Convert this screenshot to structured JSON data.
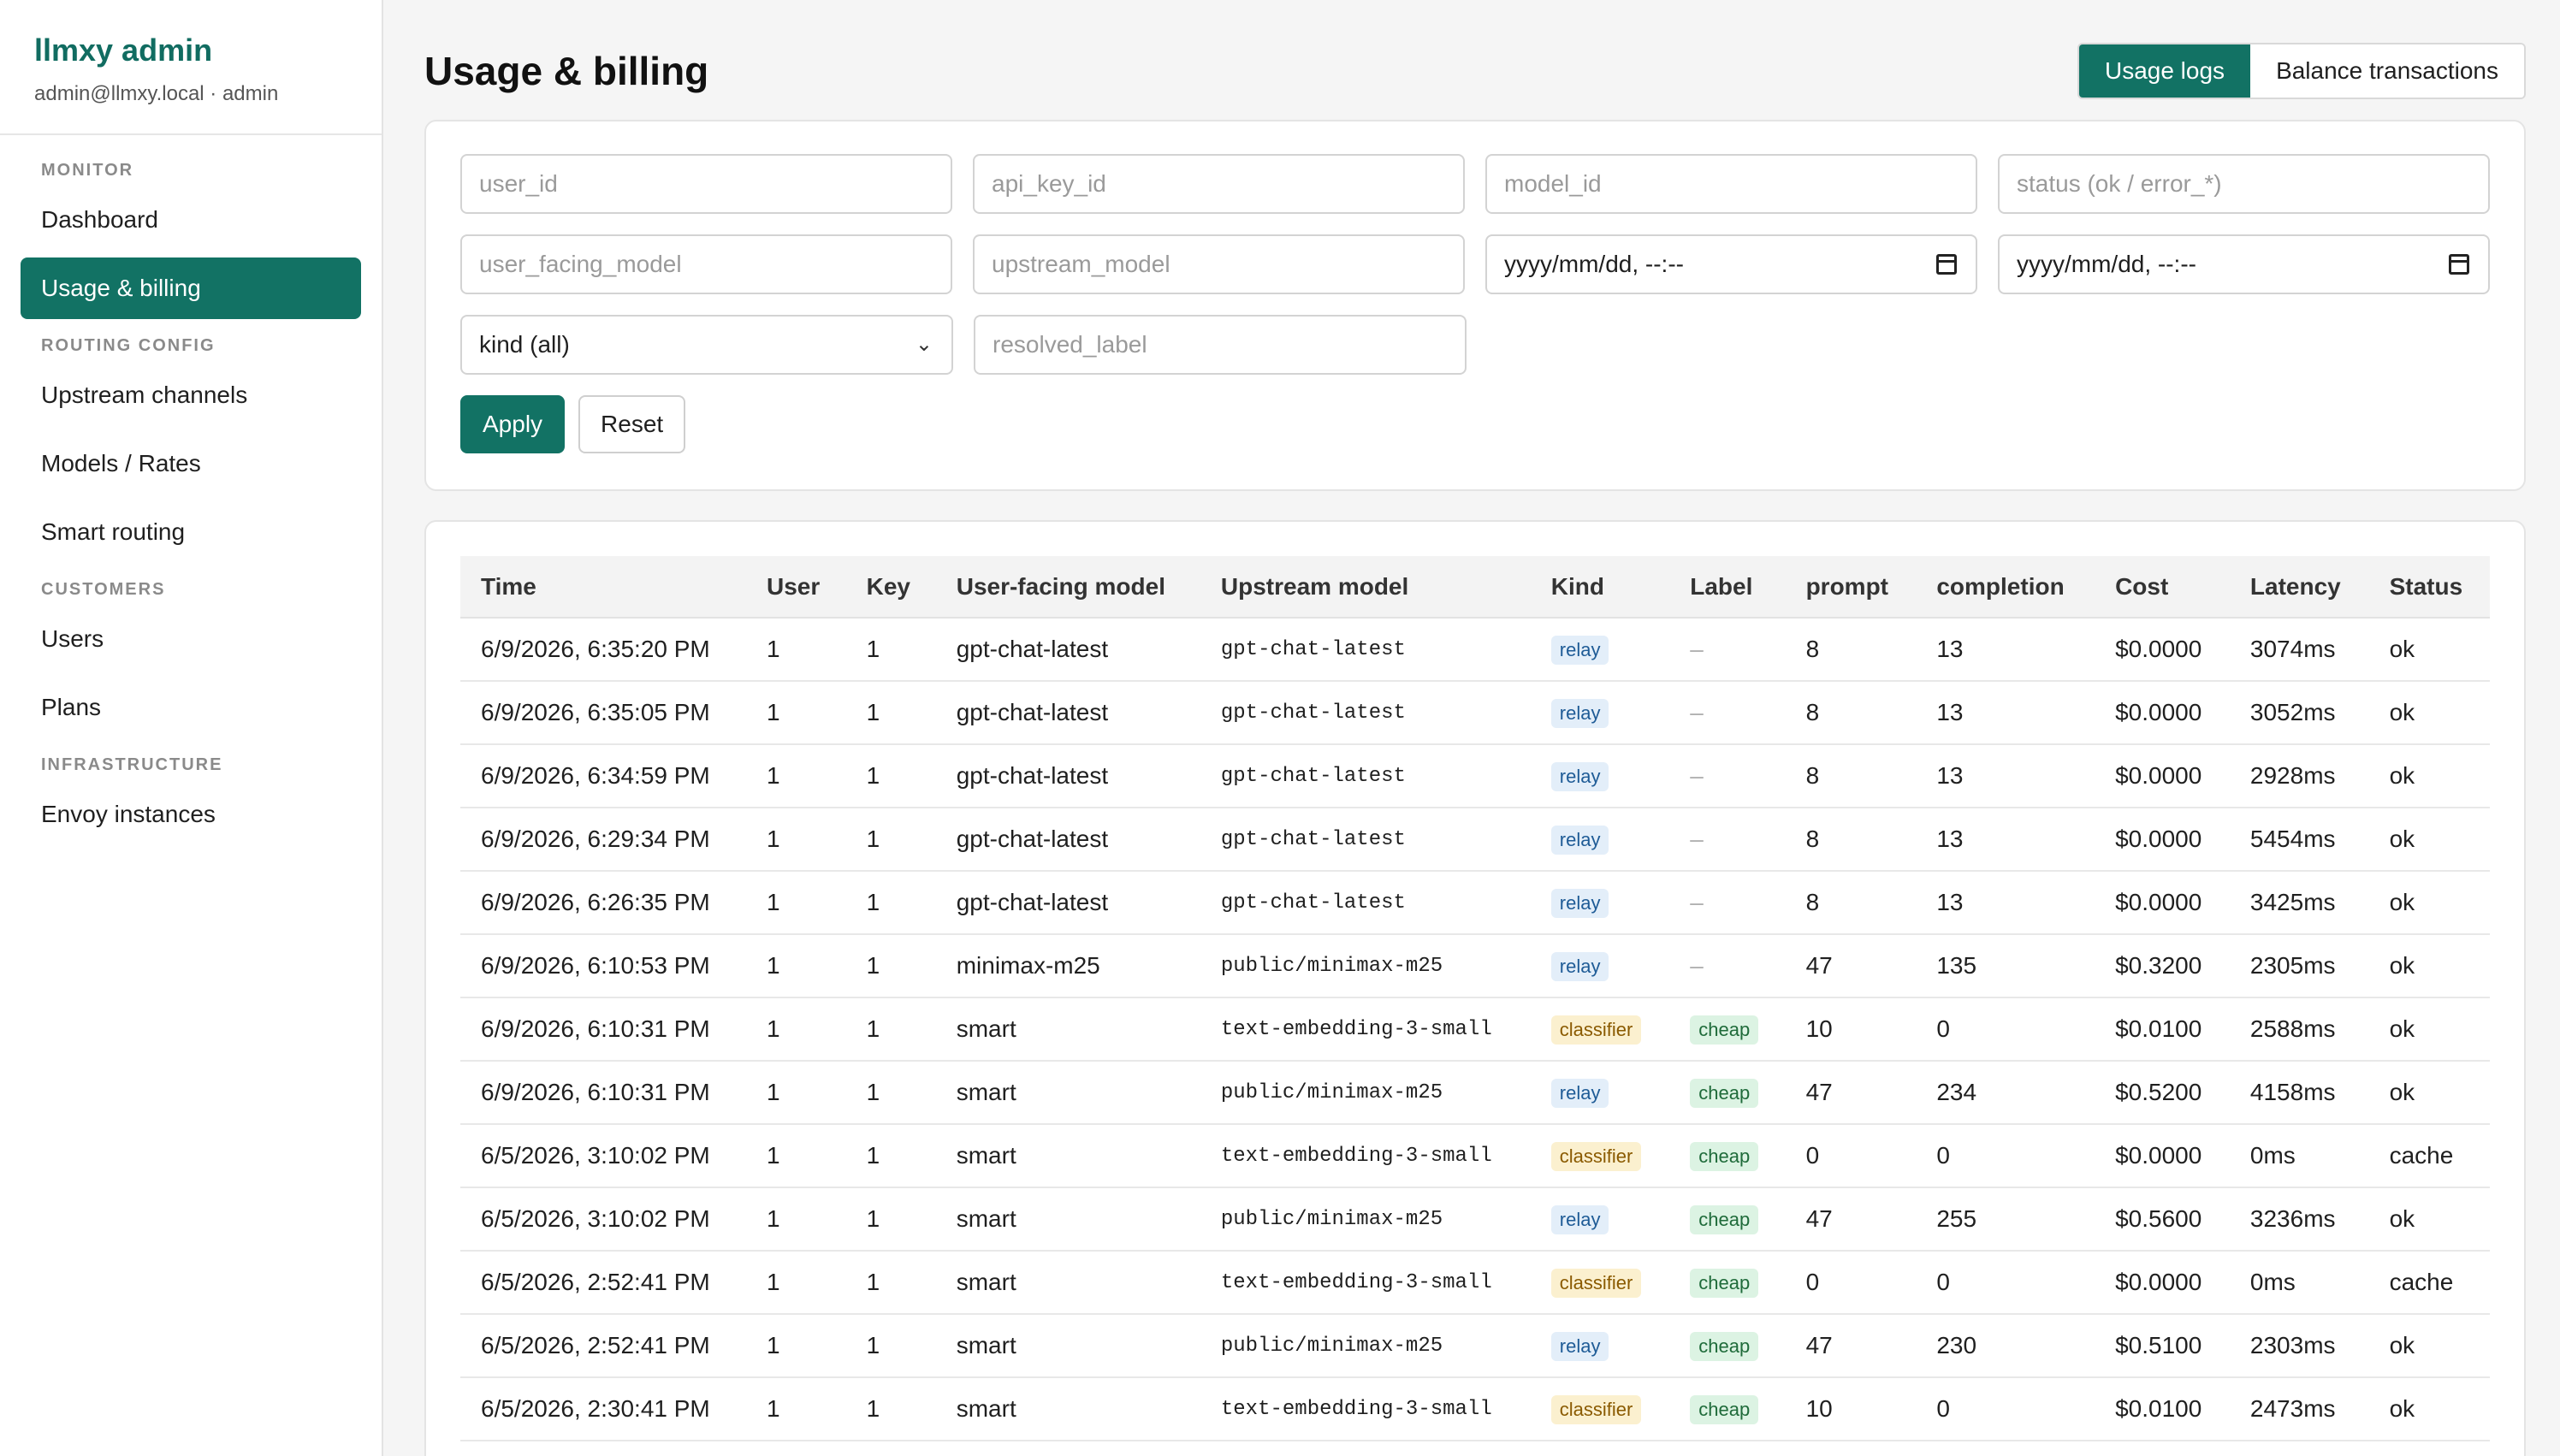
{
  "brand": {
    "title": "llmxy admin",
    "subtitle": "admin@llmxy.local · admin"
  },
  "nav": {
    "sections": [
      {
        "title": "MONITOR",
        "items": [
          "Dashboard",
          "Usage & billing"
        ]
      },
      {
        "title": "ROUTING CONFIG",
        "items": [
          "Upstream channels",
          "Models / Rates",
          "Smart routing"
        ]
      },
      {
        "title": "CUSTOMERS",
        "items": [
          "Users",
          "Plans"
        ]
      },
      {
        "title": "INFRASTRUCTURE",
        "items": [
          "Envoy instances"
        ]
      }
    ],
    "active": "Usage & billing"
  },
  "page": {
    "title": "Usage & billing"
  },
  "tabs": {
    "usage_logs": "Usage logs",
    "balance_transactions": "Balance transactions",
    "active": "Usage logs"
  },
  "filters": {
    "user_id": "user_id",
    "api_key_id": "api_key_id",
    "model_id": "model_id",
    "status": "status (ok / error_*)",
    "user_facing_model": "user_facing_model",
    "upstream_model": "upstream_model",
    "from": "yyyy/mm/dd, --:--",
    "to": "yyyy/mm/dd, --:--",
    "kind": "kind (all)",
    "resolved_label": "resolved_label",
    "apply": "Apply",
    "reset": "Reset"
  },
  "table": {
    "headers": [
      "Time",
      "User",
      "Key",
      "User-facing model",
      "Upstream model",
      "Kind",
      "Label",
      "prompt",
      "completion",
      "Cost",
      "Latency",
      "Status"
    ],
    "rows": [
      [
        "6/9/2026, 6:35:20 PM",
        "1",
        "1",
        "gpt-chat-latest",
        "gpt-chat-latest",
        "relay",
        "–",
        "8",
        "13",
        "$0.0000",
        "3074ms",
        "ok"
      ],
      [
        "6/9/2026, 6:35:05 PM",
        "1",
        "1",
        "gpt-chat-latest",
        "gpt-chat-latest",
        "relay",
        "–",
        "8",
        "13",
        "$0.0000",
        "3052ms",
        "ok"
      ],
      [
        "6/9/2026, 6:34:59 PM",
        "1",
        "1",
        "gpt-chat-latest",
        "gpt-chat-latest",
        "relay",
        "–",
        "8",
        "13",
        "$0.0000",
        "2928ms",
        "ok"
      ],
      [
        "6/9/2026, 6:29:34 PM",
        "1",
        "1",
        "gpt-chat-latest",
        "gpt-chat-latest",
        "relay",
        "–",
        "8",
        "13",
        "$0.0000",
        "5454ms",
        "ok"
      ],
      [
        "6/9/2026, 6:26:35 PM",
        "1",
        "1",
        "gpt-chat-latest",
        "gpt-chat-latest",
        "relay",
        "–",
        "8",
        "13",
        "$0.0000",
        "3425ms",
        "ok"
      ],
      [
        "6/9/2026, 6:10:53 PM",
        "1",
        "1",
        "minimax-m25",
        "public/minimax-m25",
        "relay",
        "–",
        "47",
        "135",
        "$0.3200",
        "2305ms",
        "ok"
      ],
      [
        "6/9/2026, 6:10:31 PM",
        "1",
        "1",
        "smart",
        "text-embedding-3-small",
        "classifier",
        "cheap",
        "10",
        "0",
        "$0.0100",
        "2588ms",
        "ok"
      ],
      [
        "6/9/2026, 6:10:31 PM",
        "1",
        "1",
        "smart",
        "public/minimax-m25",
        "relay",
        "cheap",
        "47",
        "234",
        "$0.5200",
        "4158ms",
        "ok"
      ],
      [
        "6/5/2026, 3:10:02 PM",
        "1",
        "1",
        "smart",
        "text-embedding-3-small",
        "classifier",
        "cheap",
        "0",
        "0",
        "$0.0000",
        "0ms",
        "cache"
      ],
      [
        "6/5/2026, 3:10:02 PM",
        "1",
        "1",
        "smart",
        "public/minimax-m25",
        "relay",
        "cheap",
        "47",
        "255",
        "$0.5600",
        "3236ms",
        "ok"
      ],
      [
        "6/5/2026, 2:52:41 PM",
        "1",
        "1",
        "smart",
        "text-embedding-3-small",
        "classifier",
        "cheap",
        "0",
        "0",
        "$0.0000",
        "0ms",
        "cache"
      ],
      [
        "6/5/2026, 2:52:41 PM",
        "1",
        "1",
        "smart",
        "public/minimax-m25",
        "relay",
        "cheap",
        "47",
        "230",
        "$0.5100",
        "2303ms",
        "ok"
      ],
      [
        "6/5/2026, 2:30:41 PM",
        "1",
        "1",
        "smart",
        "text-embedding-3-small",
        "classifier",
        "cheap",
        "10",
        "0",
        "$0.0100",
        "2473ms",
        "ok"
      ]
    ]
  },
  "colors": {
    "accent": "#127264",
    "brand_text": "#116c61"
  }
}
